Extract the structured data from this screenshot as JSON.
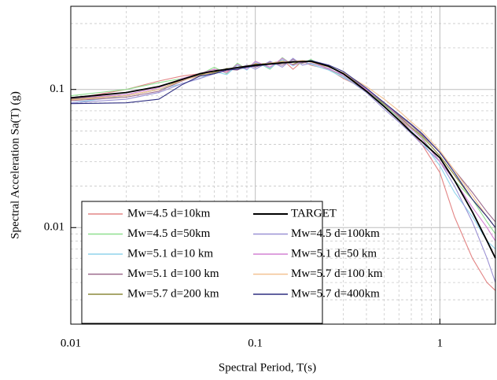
{
  "chart_data": {
    "type": "line",
    "x_label": "Spectral Period, T(s)",
    "y_label": "Spectral Acceleration Sa(T) (g)",
    "log_x": true,
    "log_y": true,
    "grid": true,
    "legend": "lower left",
    "xlim": [
      0.01,
      2
    ],
    "ylim": [
      0.002,
      0.4
    ],
    "xticks": [
      0.01,
      0.1,
      1
    ],
    "yticks": [
      0.01,
      0.1
    ],
    "x": [
      0.01,
      0.02,
      0.03,
      0.04,
      0.05,
      0.06,
      0.07,
      0.08,
      0.09,
      0.1,
      0.12,
      0.14,
      0.16,
      0.18,
      0.2,
      0.25,
      0.3,
      0.4,
      0.5,
      0.6,
      0.7,
      0.8,
      1.0,
      1.2,
      1.5,
      1.8,
      2.0
    ],
    "series": [
      {
        "name": "Mw=4.5 d=10km",
        "color": "#e38585",
        "values": [
          0.085,
          0.1,
          0.115,
          0.125,
          0.13,
          0.14,
          0.135,
          0.15,
          0.14,
          0.155,
          0.145,
          0.165,
          0.14,
          0.16,
          0.15,
          0.14,
          0.12,
          0.1,
          0.08,
          0.062,
          0.05,
          0.04,
          0.025,
          0.012,
          0.006,
          0.004,
          0.0035
        ]
      },
      {
        "name": "Mw=4.5 d=50km",
        "color": "#90e090",
        "values": [
          0.09,
          0.1,
          0.112,
          0.12,
          0.128,
          0.145,
          0.13,
          0.155,
          0.14,
          0.16,
          0.14,
          0.17,
          0.15,
          0.155,
          0.165,
          0.14,
          0.125,
          0.095,
          0.078,
          0.062,
          0.052,
          0.045,
          0.03,
          0.022,
          0.016,
          0.011,
          0.009
        ]
      },
      {
        "name": "Mw=5.1 d=10 km",
        "color": "#90d4ec",
        "values": [
          0.08,
          0.09,
          0.1,
          0.11,
          0.12,
          0.135,
          0.128,
          0.15,
          0.138,
          0.158,
          0.142,
          0.165,
          0.148,
          0.16,
          0.152,
          0.138,
          0.122,
          0.098,
          0.076,
          0.06,
          0.05,
          0.042,
          0.028,
          0.018,
          0.012,
          0.008,
          0.007
        ]
      },
      {
        "name": "Mw=5.1 d=100 km",
        "color": "#9c6a8c",
        "values": [
          0.083,
          0.088,
          0.097,
          0.115,
          0.127,
          0.133,
          0.14,
          0.138,
          0.15,
          0.145,
          0.158,
          0.15,
          0.165,
          0.155,
          0.16,
          0.145,
          0.132,
          0.1,
          0.08,
          0.065,
          0.055,
          0.047,
          0.035,
          0.026,
          0.018,
          0.013,
          0.011
        ]
      },
      {
        "name": "Mw=5.7 d=200 km",
        "color": "#8c8a3c",
        "values": [
          0.085,
          0.09,
          0.1,
          0.118,
          0.128,
          0.132,
          0.142,
          0.14,
          0.148,
          0.152,
          0.155,
          0.16,
          0.152,
          0.162,
          0.158,
          0.148,
          0.13,
          0.1,
          0.078,
          0.064,
          0.053,
          0.046,
          0.033,
          0.024,
          0.016,
          0.012,
          0.01
        ]
      },
      {
        "name": "TARGET",
        "color": "#000000",
        "values": [
          0.087,
          0.095,
          0.105,
          0.118,
          0.13,
          0.136,
          0.14,
          0.144,
          0.147,
          0.15,
          0.153,
          0.156,
          0.158,
          0.159,
          0.16,
          0.147,
          0.13,
          0.097,
          0.075,
          0.06,
          0.049,
          0.042,
          0.032,
          0.022,
          0.013,
          0.008,
          0.006
        ]
      },
      {
        "name": "Mw=4.5 d=100km",
        "color": "#9c92d4",
        "values": [
          0.08,
          0.085,
          0.095,
          0.11,
          0.12,
          0.13,
          0.138,
          0.142,
          0.15,
          0.14,
          0.16,
          0.145,
          0.168,
          0.15,
          0.155,
          0.142,
          0.125,
          0.095,
          0.072,
          0.058,
          0.048,
          0.04,
          0.03,
          0.02,
          0.011,
          0.006,
          0.004
        ]
      },
      {
        "name": "Mw=5.1 d=50 km",
        "color": "#d482d4",
        "values": [
          0.086,
          0.092,
          0.103,
          0.12,
          0.13,
          0.14,
          0.132,
          0.152,
          0.14,
          0.16,
          0.145,
          0.168,
          0.15,
          0.158,
          0.16,
          0.14,
          0.128,
          0.1,
          0.08,
          0.063,
          0.052,
          0.044,
          0.03,
          0.022,
          0.014,
          0.01,
          0.008
        ]
      },
      {
        "name": "Mw=5.7 d=100 km",
        "color": "#f2c292",
        "values": [
          0.084,
          0.09,
          0.1,
          0.116,
          0.125,
          0.135,
          0.14,
          0.145,
          0.148,
          0.15,
          0.155,
          0.158,
          0.16,
          0.162,
          0.158,
          0.145,
          0.132,
          0.105,
          0.085,
          0.07,
          0.058,
          0.05,
          0.036,
          0.026,
          0.017,
          0.012,
          0.01
        ]
      },
      {
        "name": "Mw=5.7 d=400km",
        "color": "#2e2e80",
        "values": [
          0.079,
          0.08,
          0.085,
          0.108,
          0.125,
          0.13,
          0.138,
          0.14,
          0.145,
          0.148,
          0.152,
          0.155,
          0.16,
          0.158,
          0.162,
          0.15,
          0.135,
          0.102,
          0.08,
          0.066,
          0.056,
          0.048,
          0.035,
          0.025,
          0.016,
          0.012,
          0.01
        ]
      }
    ]
  }
}
